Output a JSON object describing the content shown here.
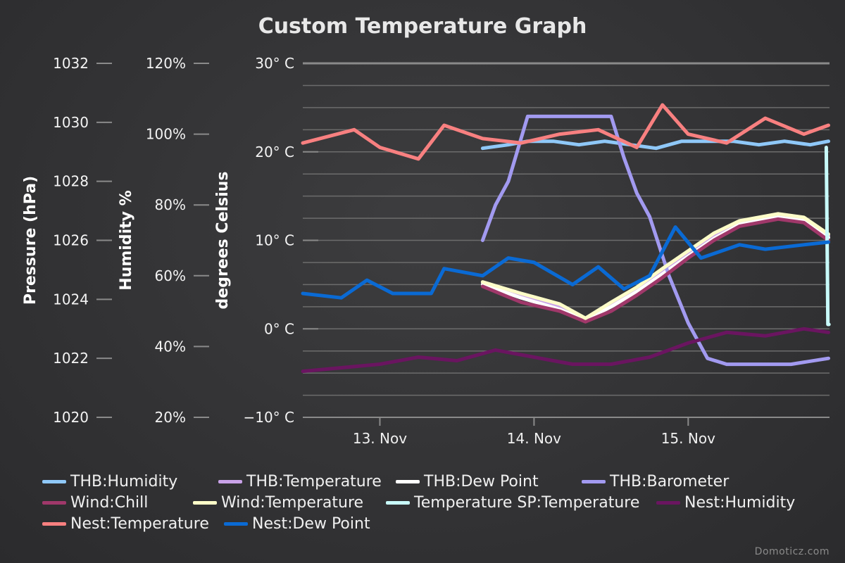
{
  "chart_data": {
    "type": "line",
    "title": "Custom Temperature Graph",
    "x_axis": {
      "type": "datetime",
      "range": [
        "2023-11-12T12:00",
        "2023-11-15T22:00"
      ],
      "ticks": [
        "13. Nov",
        "14. Nov",
        "15. Nov"
      ]
    },
    "y_axes": [
      {
        "id": "pressure",
        "label": "Pressure (hPa)",
        "range": [
          1020,
          1032
        ],
        "ticks": [
          "1020",
          "1022",
          "1024",
          "1026",
          "1028",
          "1030",
          "1032"
        ]
      },
      {
        "id": "humidity",
        "label": "Humidity %",
        "range": [
          20,
          120
        ],
        "ticks": [
          "20%",
          "40%",
          "60%",
          "80%",
          "100%",
          "120%"
        ]
      },
      {
        "id": "temperature",
        "label": "degrees Celsius",
        "range": [
          -10,
          30
        ],
        "ticks": [
          "−10° C",
          "0° C",
          "10° C",
          "20° C",
          "30° C"
        ]
      }
    ],
    "grid": true,
    "legend_position": "bottom",
    "series": [
      {
        "name": "THB:Humidity",
        "color": "#8fc8f8",
        "axis": "humidity",
        "data": [
          [
            "2023-11-13T16:00",
            96
          ],
          [
            "2023-11-13T20:00",
            97
          ],
          [
            "2023-11-13T23:00",
            98
          ],
          [
            "2023-11-14T03:00",
            98
          ],
          [
            "2023-11-14T07:00",
            97
          ],
          [
            "2023-11-14T11:00",
            98
          ],
          [
            "2023-11-14T15:00",
            97
          ],
          [
            "2023-11-14T19:00",
            96
          ],
          [
            "2023-11-14T23:00",
            98
          ],
          [
            "2023-11-15T03:00",
            98
          ],
          [
            "2023-11-15T07:00",
            98
          ],
          [
            "2023-11-15T11:00",
            97
          ],
          [
            "2023-11-15T15:00",
            98
          ],
          [
            "2023-11-15T19:00",
            97
          ],
          [
            "2023-11-15T21:50",
            98
          ]
        ]
      },
      {
        "name": "THB:Temperature",
        "color": "#c9a2e8",
        "axis": "temperature",
        "data": [
          [
            "2023-11-13T16:00",
            5.2
          ],
          [
            "2023-11-13T22:00",
            3.8
          ],
          [
            "2023-11-14T04:00",
            2.6
          ],
          [
            "2023-11-14T08:00",
            1.0
          ],
          [
            "2023-11-14T12:00",
            2.8
          ],
          [
            "2023-11-14T16:00",
            4.5
          ],
          [
            "2023-11-14T20:00",
            6.5
          ],
          [
            "2023-11-15T00:00",
            8.5
          ],
          [
            "2023-11-15T04:00",
            10.5
          ],
          [
            "2023-11-15T08:00",
            12.0
          ],
          [
            "2023-11-15T14:00",
            12.8
          ],
          [
            "2023-11-15T18:00",
            12.5
          ],
          [
            "2023-11-15T21:50",
            10.5
          ]
        ]
      },
      {
        "name": "THB:Dew Point",
        "color": "#ffffff",
        "axis": "temperature",
        "data": [
          [
            "2023-11-13T16:00",
            5.0
          ],
          [
            "2023-11-13T22:00",
            3.5
          ],
          [
            "2023-11-14T04:00",
            2.2
          ],
          [
            "2023-11-14T08:00",
            1.0
          ],
          [
            "2023-11-14T12:00",
            2.5
          ],
          [
            "2023-11-14T16:00",
            4.2
          ],
          [
            "2023-11-14T20:00",
            6.2
          ],
          [
            "2023-11-15T00:00",
            8.2
          ],
          [
            "2023-11-15T04:00",
            10.2
          ],
          [
            "2023-11-15T08:00",
            11.8
          ],
          [
            "2023-11-15T14:00",
            12.6
          ],
          [
            "2023-11-15T18:00",
            12.2
          ],
          [
            "2023-11-15T21:50",
            10.3
          ]
        ]
      },
      {
        "name": "THB:Barometer",
        "color": "#a29af0",
        "axis": "pressure",
        "data": [
          [
            "2023-11-13T16:00",
            1026
          ],
          [
            "2023-11-13T18:00",
            1027.2
          ],
          [
            "2023-11-13T20:00",
            1028
          ],
          [
            "2023-11-13T23:00",
            1030.2
          ],
          [
            "2023-11-14T04:00",
            1030.2
          ],
          [
            "2023-11-14T12:00",
            1030.2
          ],
          [
            "2023-11-14T14:00",
            1028.8
          ],
          [
            "2023-11-14T16:00",
            1027.6
          ],
          [
            "2023-11-14T18:00",
            1026.8
          ],
          [
            "2023-11-14T21:00",
            1024.8
          ],
          [
            "2023-11-15T00:00",
            1023.2
          ],
          [
            "2023-11-15T03:00",
            1022
          ],
          [
            "2023-11-15T06:00",
            1021.8
          ],
          [
            "2023-11-15T12:00",
            1021.8
          ],
          [
            "2023-11-15T16:00",
            1021.8
          ],
          [
            "2023-11-15T21:50",
            1022
          ]
        ]
      },
      {
        "name": "Wind:Chill",
        "color": "#a0386a",
        "axis": "temperature",
        "data": [
          [
            "2023-11-13T16:00",
            4.8
          ],
          [
            "2023-11-13T22:00",
            3.0
          ],
          [
            "2023-11-14T04:00",
            2.0
          ],
          [
            "2023-11-14T08:00",
            0.8
          ],
          [
            "2023-11-14T12:00",
            2.0
          ],
          [
            "2023-11-14T16:00",
            3.8
          ],
          [
            "2023-11-14T20:00",
            5.8
          ],
          [
            "2023-11-15T00:00",
            8.0
          ],
          [
            "2023-11-15T04:00",
            10.0
          ],
          [
            "2023-11-15T08:00",
            11.6
          ],
          [
            "2023-11-15T14:00",
            12.4
          ],
          [
            "2023-11-15T18:00",
            12.0
          ],
          [
            "2023-11-15T21:50",
            10.0
          ]
        ]
      },
      {
        "name": "Wind:Temperature",
        "color": "#fdfdc8",
        "axis": "temperature",
        "data": [
          [
            "2023-11-13T16:00",
            5.3
          ],
          [
            "2023-11-13T22:00",
            4.0
          ],
          [
            "2023-11-14T04:00",
            2.8
          ],
          [
            "2023-11-14T08:00",
            1.2
          ],
          [
            "2023-11-14T12:00",
            3.0
          ],
          [
            "2023-11-14T16:00",
            4.7
          ],
          [
            "2023-11-14T20:00",
            6.8
          ],
          [
            "2023-11-15T00:00",
            8.8
          ],
          [
            "2023-11-15T04:00",
            10.8
          ],
          [
            "2023-11-15T08:00",
            12.2
          ],
          [
            "2023-11-15T14:00",
            13.0
          ],
          [
            "2023-11-15T18:00",
            12.6
          ],
          [
            "2023-11-15T21:50",
            10.7
          ]
        ]
      },
      {
        "name": "Temperature SP:Temperature",
        "color": "#c8fafa",
        "axis": "temperature",
        "data": [
          [
            "2023-11-15T21:30",
            20.5
          ],
          [
            "2023-11-15T21:45",
            0.5
          ],
          [
            "2023-11-15T21:55",
            0.5
          ]
        ]
      },
      {
        "name": "Nest:Humidity",
        "color": "#6a1560",
        "axis": "humidity",
        "data": [
          [
            "2023-11-12T12:00",
            33
          ],
          [
            "2023-11-13T00:00",
            35
          ],
          [
            "2023-11-13T06:00",
            37
          ],
          [
            "2023-11-13T12:00",
            36
          ],
          [
            "2023-11-13T18:00",
            39
          ],
          [
            "2023-11-14T00:00",
            37
          ],
          [
            "2023-11-14T06:00",
            35
          ],
          [
            "2023-11-14T12:00",
            35
          ],
          [
            "2023-11-14T18:00",
            37
          ],
          [
            "2023-11-15T00:00",
            41
          ],
          [
            "2023-11-15T06:00",
            44
          ],
          [
            "2023-11-15T12:00",
            43
          ],
          [
            "2023-11-15T18:00",
            45
          ],
          [
            "2023-11-15T21:50",
            44
          ]
        ]
      },
      {
        "name": "Nest:Temperature",
        "color": "#f88080",
        "axis": "temperature",
        "data": [
          [
            "2023-11-12T12:00",
            21.0
          ],
          [
            "2023-11-12T20:00",
            22.5
          ],
          [
            "2023-11-13T00:00",
            20.5
          ],
          [
            "2023-11-13T06:00",
            19.2
          ],
          [
            "2023-11-13T10:00",
            23.0
          ],
          [
            "2023-11-13T16:00",
            21.5
          ],
          [
            "2023-11-13T22:00",
            21.0
          ],
          [
            "2023-11-14T04:00",
            22.0
          ],
          [
            "2023-11-14T10:00",
            22.5
          ],
          [
            "2023-11-14T16:00",
            20.5
          ],
          [
            "2023-11-14T20:00",
            25.3
          ],
          [
            "2023-11-15T00:00",
            22.0
          ],
          [
            "2023-11-15T06:00",
            21.0
          ],
          [
            "2023-11-15T12:00",
            23.8
          ],
          [
            "2023-11-15T18:00",
            22.0
          ],
          [
            "2023-11-15T21:50",
            23.0
          ]
        ]
      },
      {
        "name": "Nest:Dew Point",
        "color": "#0a6ad4",
        "axis": "temperature",
        "data": [
          [
            "2023-11-12T12:00",
            4.0
          ],
          [
            "2023-11-12T18:00",
            3.5
          ],
          [
            "2023-11-12T22:00",
            5.5
          ],
          [
            "2023-11-13T02:00",
            4.0
          ],
          [
            "2023-11-13T08:00",
            4.0
          ],
          [
            "2023-11-13T10:00",
            6.8
          ],
          [
            "2023-11-13T16:00",
            6.0
          ],
          [
            "2023-11-13T20:00",
            8.0
          ],
          [
            "2023-11-14T00:00",
            7.5
          ],
          [
            "2023-11-14T06:00",
            5.0
          ],
          [
            "2023-11-14T10:00",
            7.0
          ],
          [
            "2023-11-14T14:00",
            4.5
          ],
          [
            "2023-11-14T18:00",
            6.0
          ],
          [
            "2023-11-14T22:00",
            11.5
          ],
          [
            "2023-11-15T02:00",
            8.0
          ],
          [
            "2023-11-15T08:00",
            9.5
          ],
          [
            "2023-11-15T12:00",
            9.0
          ],
          [
            "2023-11-15T18:00",
            9.5
          ],
          [
            "2023-11-15T21:50",
            9.8
          ]
        ]
      }
    ]
  },
  "credits": "Domoticz.com"
}
